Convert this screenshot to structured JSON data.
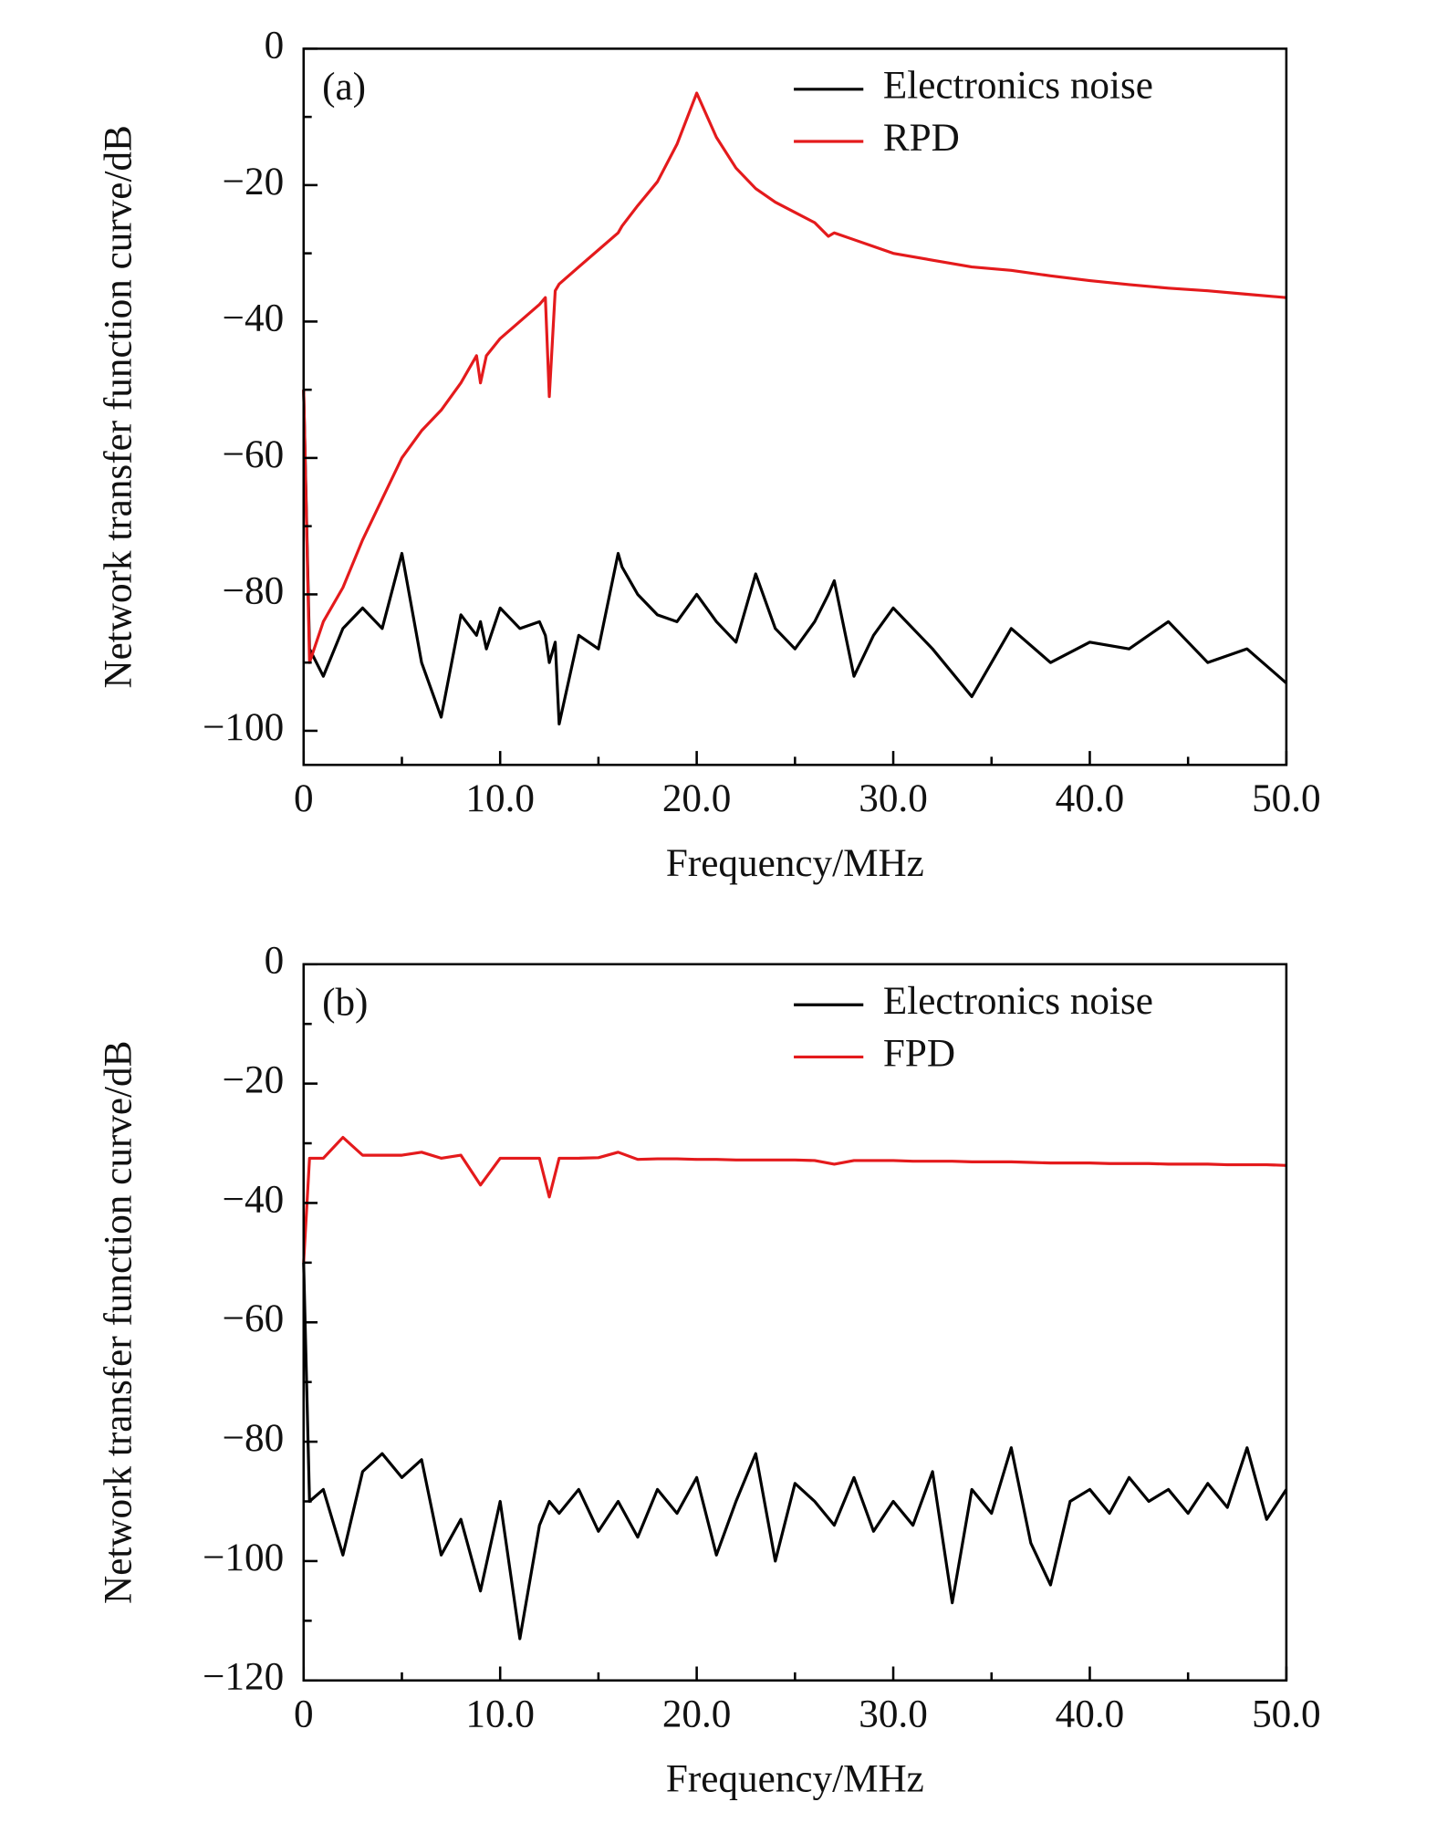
{
  "chart_data": [
    {
      "type": "line",
      "annotation": "(a)",
      "xlabel": "Frequency/MHz",
      "ylabel": "Network transfer function curve/dB",
      "xlim": [
        0,
        50
      ],
      "ylim": [
        -105,
        0
      ],
      "xticks": [
        0,
        {
          "value": 10,
          "label": "10.0"
        },
        {
          "value": 20,
          "label": "20.0"
        },
        {
          "value": 30,
          "label": "30.0"
        },
        {
          "value": 40,
          "label": "40.0"
        },
        {
          "value": 50,
          "label": "50.0"
        }
      ],
      "xminorticks": [
        5,
        15,
        25,
        35,
        45
      ],
      "yticks": [
        {
          "value": 0,
          "label": "0"
        },
        {
          "value": -20,
          "label": "−20"
        },
        {
          "value": -40,
          "label": "−40"
        },
        {
          "value": -60,
          "label": "−60"
        },
        {
          "value": -80,
          "label": "−80"
        },
        {
          "value": -100,
          "label": "−100"
        }
      ],
      "yminorticks": [
        -10,
        -30,
        -50,
        -70,
        -90
      ],
      "legend": "upper right",
      "x": [
        0,
        0.3,
        1,
        2,
        3,
        4,
        5,
        6,
        7,
        8,
        8.8,
        9,
        9.3,
        10,
        11,
        12,
        12.3,
        12.5,
        12.8,
        13,
        14,
        15,
        16,
        16.2,
        17,
        18,
        19,
        20,
        21,
        22,
        23,
        24,
        25,
        26,
        26.7,
        27,
        28,
        29,
        30,
        32,
        34,
        36,
        38,
        40,
        42,
        44,
        46,
        48,
        50
      ],
      "series": [
        {
          "name": "Electronics noise",
          "color": "#000000",
          "values": [
            -50,
            -88,
            -92,
            -85,
            -82,
            -85,
            -74,
            -90,
            -98,
            -83,
            -86,
            -84,
            -88,
            -82,
            -85,
            -84,
            -86,
            -90,
            -87,
            -99,
            -86,
            -88,
            -74,
            -76,
            -80,
            -83,
            -84,
            -80,
            -84,
            -87,
            -77,
            -85,
            -88,
            -84,
            -80,
            -78,
            -92,
            -86,
            -82,
            -88,
            -95,
            -85,
            -90,
            -87,
            -88,
            -84,
            -90,
            -88,
            -93
          ]
        },
        {
          "name": "RPD",
          "color": "#e41a1c",
          "values": [
            -50,
            -90,
            -84,
            -79,
            -72,
            -66,
            -60,
            -56,
            -53,
            -49,
            -45,
            -49,
            -45,
            -42.5,
            -40,
            -37.5,
            -36.5,
            -51,
            -35.5,
            -34.5,
            -32,
            -29.5,
            -27,
            -26,
            -23,
            -19.5,
            -14,
            -6.5,
            -13,
            -17.5,
            -20.5,
            -22.5,
            -24,
            -25.5,
            -27.5,
            -27,
            -28,
            -29,
            -30,
            -31,
            -32,
            -32.5,
            -33.3,
            -34,
            -34.6,
            -35.1,
            -35.5,
            -36,
            -36.5
          ]
        }
      ]
    },
    {
      "type": "line",
      "annotation": "(b)",
      "xlabel": "Frequency/MHz",
      "ylabel": "Network transfer function curve/dB",
      "xlim": [
        0,
        50
      ],
      "ylim": [
        -120,
        0
      ],
      "xticks": [
        0,
        {
          "value": 10,
          "label": "10.0"
        },
        {
          "value": 20,
          "label": "20.0"
        },
        {
          "value": 30,
          "label": "30.0"
        },
        {
          "value": 40,
          "label": "40.0"
        },
        {
          "value": 50,
          "label": "50.0"
        }
      ],
      "xminorticks": [
        5,
        15,
        25,
        35,
        45
      ],
      "yticks": [
        {
          "value": 0,
          "label": "0"
        },
        {
          "value": -20,
          "label": "−20"
        },
        {
          "value": -40,
          "label": "−40"
        },
        {
          "value": -60,
          "label": "−60"
        },
        {
          "value": -80,
          "label": "−80"
        },
        {
          "value": -100,
          "label": "−100"
        },
        {
          "value": -120,
          "label": "−120"
        }
      ],
      "yminorticks": [
        -10,
        -30,
        -50,
        -70,
        -90,
        -110
      ],
      "legend": "upper right",
      "x": [
        0,
        0.3,
        1,
        2,
        3,
        4,
        5,
        6,
        7,
        8,
        9,
        10,
        11,
        12,
        12.5,
        13,
        14,
        15,
        16,
        17,
        18,
        19,
        20,
        21,
        22,
        23,
        24,
        25,
        26,
        27,
        28,
        29,
        30,
        31,
        32,
        33,
        34,
        35,
        36,
        37,
        38,
        39,
        40,
        41,
        42,
        43,
        44,
        45,
        46,
        47,
        48,
        49,
        50
      ],
      "series": [
        {
          "name": "Electronics noise",
          "color": "#000000",
          "values": [
            -50,
            -90,
            -88,
            -99,
            -85,
            -82,
            -86,
            -83,
            -99,
            -93,
            -105,
            -90,
            -113,
            -94,
            -90,
            -92,
            -88,
            -95,
            -90,
            -96,
            -88,
            -92,
            -86,
            -99,
            -90,
            -82,
            -100,
            -87,
            -90,
            -94,
            -86,
            -95,
            -90,
            -94,
            -85,
            -107,
            -88,
            -92,
            -81,
            -97,
            -104,
            -90,
            -88,
            -92,
            -86,
            -90,
            -88,
            -92,
            -87,
            -91,
            -81,
            -93,
            -88
          ]
        },
        {
          "name": "FPD",
          "color": "#e41a1c",
          "values": [
            -50,
            -32.5,
            -32.5,
            -29,
            -32,
            -32,
            -32,
            -31.5,
            -32.5,
            -32,
            -37,
            -32.5,
            -32.5,
            -32.5,
            -39,
            -32.5,
            -32.5,
            -32.4,
            -31.5,
            -32.7,
            -32.6,
            -32.6,
            -32.7,
            -32.7,
            -32.8,
            -32.8,
            -32.8,
            -32.8,
            -32.9,
            -33.5,
            -32.9,
            -32.9,
            -32.9,
            -33,
            -33,
            -33,
            -33.1,
            -33.1,
            -33.1,
            -33.2,
            -33.3,
            -33.3,
            -33.3,
            -33.4,
            -33.4,
            -33.4,
            -33.5,
            -33.5,
            -33.5,
            -33.6,
            -33.6,
            -33.6,
            -33.7
          ]
        }
      ]
    }
  ]
}
